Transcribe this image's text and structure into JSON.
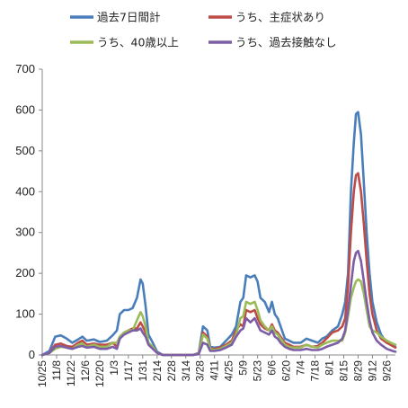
{
  "chart_data": {
    "type": "line",
    "title": "",
    "xlabel": "",
    "ylabel": "",
    "ylim": [
      0,
      700
    ],
    "yticks": [
      0,
      100,
      200,
      300,
      400,
      500,
      600,
      700
    ],
    "grid": false,
    "legend_position": "top",
    "categories": [
      "10/25",
      "11/8",
      "11/22",
      "12/6",
      "12/20",
      "1/3",
      "1/17",
      "1/31",
      "2/14",
      "2/28",
      "3/14",
      "3/28",
      "4/11",
      "4/25",
      "5/9",
      "5/23",
      "6/6",
      "6/20",
      "7/4",
      "7/18",
      "8/1",
      "8/15",
      "8/29",
      "9/12",
      "9/26"
    ],
    "x_tick_labels": [
      "10/25",
      "11/8",
      "11/22",
      "12/6",
      "12/20",
      "1/3",
      "1/17",
      "1/31",
      "2/14",
      "2/28",
      "3/14",
      "3/28",
      "4/11",
      "4/25",
      "5/9",
      "5/23",
      "6/6",
      "6/20",
      "7/4",
      "7/18",
      "8/1",
      "8/15",
      "8/29",
      "9/12",
      "9/26"
    ],
    "series": [
      {
        "name": "過去7日間計",
        "color": "#4a7ebb",
        "points": [
          [
            0,
            0
          ],
          [
            0.5,
            10
          ],
          [
            0.9,
            45
          ],
          [
            1.3,
            48
          ],
          [
            1.7,
            40
          ],
          [
            2.1,
            30
          ],
          [
            2.5,
            38
          ],
          [
            2.8,
            45
          ],
          [
            3.1,
            35
          ],
          [
            3.6,
            38
          ],
          [
            4.0,
            32
          ],
          [
            4.5,
            35
          ],
          [
            4.9,
            48
          ],
          [
            5.2,
            60
          ],
          [
            5.4,
            100
          ],
          [
            5.7,
            110
          ],
          [
            6.0,
            110
          ],
          [
            6.3,
            115
          ],
          [
            6.6,
            140
          ],
          [
            6.85,
            185
          ],
          [
            7.0,
            175
          ],
          [
            7.2,
            120
          ],
          [
            7.4,
            50
          ],
          [
            7.7,
            30
          ],
          [
            8.0,
            8
          ],
          [
            8.4,
            0
          ],
          [
            9.0,
            0
          ],
          [
            9.5,
            0
          ],
          [
            10.0,
            0
          ],
          [
            10.5,
            0
          ],
          [
            10.9,
            5
          ],
          [
            11.2,
            70
          ],
          [
            11.5,
            60
          ],
          [
            11.7,
            20
          ],
          [
            12.0,
            18
          ],
          [
            12.4,
            20
          ],
          [
            12.8,
            35
          ],
          [
            13.2,
            50
          ],
          [
            13.5,
            70
          ],
          [
            13.8,
            130
          ],
          [
            14.0,
            140
          ],
          [
            14.2,
            195
          ],
          [
            14.5,
            190
          ],
          [
            14.8,
            195
          ],
          [
            15.0,
            180
          ],
          [
            15.2,
            140
          ],
          [
            15.5,
            130
          ],
          [
            15.8,
            105
          ],
          [
            16.0,
            130
          ],
          [
            16.2,
            100
          ],
          [
            16.4,
            90
          ],
          [
            16.6,
            70
          ],
          [
            16.9,
            40
          ],
          [
            17.2,
            35
          ],
          [
            17.5,
            30
          ],
          [
            18.0,
            30
          ],
          [
            18.4,
            40
          ],
          [
            18.8,
            35
          ],
          [
            19.2,
            30
          ],
          [
            19.5,
            40
          ],
          [
            19.8,
            45
          ],
          [
            20.2,
            60
          ],
          [
            20.6,
            70
          ],
          [
            20.9,
            100
          ],
          [
            21.1,
            130
          ],
          [
            21.3,
            200
          ],
          [
            21.5,
            400
          ],
          [
            21.7,
            520
          ],
          [
            21.85,
            590
          ],
          [
            22.0,
            595
          ],
          [
            22.2,
            540
          ],
          [
            22.4,
            420
          ],
          [
            22.6,
            300
          ],
          [
            22.8,
            200
          ],
          [
            23.0,
            130
          ],
          [
            23.3,
            80
          ],
          [
            23.6,
            50
          ],
          [
            24.0,
            30
          ],
          [
            24.4,
            25
          ],
          [
            24.6,
            20
          ]
        ]
      },
      {
        "name": "うち、主症状あり",
        "color": "#be4b48",
        "points": [
          [
            0,
            0
          ],
          [
            0.5,
            5
          ],
          [
            0.9,
            25
          ],
          [
            1.3,
            28
          ],
          [
            1.7,
            22
          ],
          [
            2.1,
            20
          ],
          [
            2.5,
            30
          ],
          [
            2.8,
            35
          ],
          [
            3.1,
            25
          ],
          [
            3.6,
            28
          ],
          [
            4.0,
            25
          ],
          [
            4.5,
            25
          ],
          [
            4.9,
            30
          ],
          [
            5.2,
            20
          ],
          [
            5.4,
            40
          ],
          [
            5.7,
            55
          ],
          [
            6.0,
            60
          ],
          [
            6.3,
            65
          ],
          [
            6.6,
            65
          ],
          [
            6.85,
            80
          ],
          [
            7.0,
            70
          ],
          [
            7.2,
            55
          ],
          [
            7.4,
            30
          ],
          [
            7.7,
            20
          ],
          [
            8.0,
            5
          ],
          [
            8.4,
            0
          ],
          [
            9.0,
            0
          ],
          [
            9.5,
            0
          ],
          [
            10.0,
            0
          ],
          [
            10.5,
            0
          ],
          [
            10.9,
            3
          ],
          [
            11.2,
            55
          ],
          [
            11.5,
            45
          ],
          [
            11.7,
            15
          ],
          [
            12.0,
            15
          ],
          [
            12.4,
            18
          ],
          [
            12.8,
            25
          ],
          [
            13.2,
            35
          ],
          [
            13.5,
            60
          ],
          [
            13.8,
            75
          ],
          [
            14.0,
            70
          ],
          [
            14.2,
            110
          ],
          [
            14.5,
            105
          ],
          [
            14.8,
            110
          ],
          [
            15.0,
            90
          ],
          [
            15.2,
            75
          ],
          [
            15.5,
            65
          ],
          [
            15.8,
            60
          ],
          [
            16.0,
            75
          ],
          [
            16.2,
            60
          ],
          [
            16.4,
            55
          ],
          [
            16.6,
            45
          ],
          [
            16.9,
            30
          ],
          [
            17.2,
            25
          ],
          [
            17.5,
            20
          ],
          [
            18.0,
            20
          ],
          [
            18.4,
            25
          ],
          [
            18.8,
            20
          ],
          [
            19.2,
            22
          ],
          [
            19.5,
            30
          ],
          [
            19.8,
            40
          ],
          [
            20.2,
            55
          ],
          [
            20.6,
            60
          ],
          [
            20.9,
            70
          ],
          [
            21.1,
            90
          ],
          [
            21.3,
            170
          ],
          [
            21.5,
            300
          ],
          [
            21.7,
            400
          ],
          [
            21.85,
            440
          ],
          [
            22.0,
            445
          ],
          [
            22.2,
            400
          ],
          [
            22.4,
            320
          ],
          [
            22.6,
            230
          ],
          [
            22.8,
            150
          ],
          [
            23.0,
            100
          ],
          [
            23.3,
            60
          ],
          [
            23.6,
            40
          ],
          [
            24.0,
            30
          ],
          [
            24.4,
            22
          ],
          [
            24.6,
            18
          ]
        ]
      },
      {
        "name": "うち、40歳以上",
        "color": "#9bbb59",
        "points": [
          [
            0,
            0
          ],
          [
            0.5,
            5
          ],
          [
            0.9,
            15
          ],
          [
            1.3,
            20
          ],
          [
            1.7,
            18
          ],
          [
            2.1,
            15
          ],
          [
            2.5,
            25
          ],
          [
            2.8,
            28
          ],
          [
            3.1,
            20
          ],
          [
            3.6,
            25
          ],
          [
            4.0,
            20
          ],
          [
            4.5,
            20
          ],
          [
            4.9,
            30
          ],
          [
            5.2,
            30
          ],
          [
            5.4,
            45
          ],
          [
            5.7,
            55
          ],
          [
            6.0,
            60
          ],
          [
            6.3,
            60
          ],
          [
            6.6,
            85
          ],
          [
            6.85,
            105
          ],
          [
            7.0,
            95
          ],
          [
            7.2,
            70
          ],
          [
            7.4,
            30
          ],
          [
            7.7,
            20
          ],
          [
            8.0,
            5
          ],
          [
            8.4,
            0
          ],
          [
            9.0,
            0
          ],
          [
            9.5,
            0
          ],
          [
            10.0,
            0
          ],
          [
            10.5,
            0
          ],
          [
            10.9,
            3
          ],
          [
            11.2,
            50
          ],
          [
            11.5,
            40
          ],
          [
            11.7,
            15
          ],
          [
            12.0,
            12
          ],
          [
            12.4,
            15
          ],
          [
            12.8,
            22
          ],
          [
            13.2,
            30
          ],
          [
            13.5,
            50
          ],
          [
            13.8,
            90
          ],
          [
            14.0,
            95
          ],
          [
            14.2,
            130
          ],
          [
            14.5,
            125
          ],
          [
            14.8,
            130
          ],
          [
            15.0,
            110
          ],
          [
            15.2,
            85
          ],
          [
            15.5,
            70
          ],
          [
            15.8,
            60
          ],
          [
            16.0,
            70
          ],
          [
            16.2,
            55
          ],
          [
            16.4,
            50
          ],
          [
            16.6,
            40
          ],
          [
            16.9,
            25
          ],
          [
            17.2,
            20
          ],
          [
            17.5,
            18
          ],
          [
            18.0,
            18
          ],
          [
            18.4,
            25
          ],
          [
            18.8,
            20
          ],
          [
            19.2,
            18
          ],
          [
            19.5,
            25
          ],
          [
            19.8,
            30
          ],
          [
            20.2,
            35
          ],
          [
            20.6,
            35
          ],
          [
            20.9,
            35
          ],
          [
            21.1,
            55
          ],
          [
            21.3,
            95
          ],
          [
            21.5,
            140
          ],
          [
            21.7,
            165
          ],
          [
            21.85,
            180
          ],
          [
            22.0,
            185
          ],
          [
            22.2,
            180
          ],
          [
            22.4,
            150
          ],
          [
            22.6,
            110
          ],
          [
            22.8,
            70
          ],
          [
            23.0,
            60
          ],
          [
            23.3,
            55
          ],
          [
            23.6,
            45
          ],
          [
            24.0,
            35
          ],
          [
            24.4,
            28
          ],
          [
            24.6,
            25
          ]
        ]
      },
      {
        "name": "うち、過去接触なし",
        "color": "#7d5ea6",
        "points": [
          [
            0,
            0
          ],
          [
            0.5,
            5
          ],
          [
            0.9,
            20
          ],
          [
            1.3,
            22
          ],
          [
            1.7,
            18
          ],
          [
            2.1,
            15
          ],
          [
            2.5,
            20
          ],
          [
            2.8,
            22
          ],
          [
            3.1,
            18
          ],
          [
            3.6,
            20
          ],
          [
            4.0,
            15
          ],
          [
            4.5,
            15
          ],
          [
            4.9,
            20
          ],
          [
            5.2,
            15
          ],
          [
            5.4,
            40
          ],
          [
            5.7,
            50
          ],
          [
            6.0,
            55
          ],
          [
            6.3,
            60
          ],
          [
            6.6,
            60
          ],
          [
            6.85,
            65
          ],
          [
            7.0,
            55
          ],
          [
            7.2,
            45
          ],
          [
            7.4,
            25
          ],
          [
            7.7,
            15
          ],
          [
            8.0,
            5
          ],
          [
            8.4,
            0
          ],
          [
            9.0,
            0
          ],
          [
            9.5,
            0
          ],
          [
            10.0,
            0
          ],
          [
            10.5,
            0
          ],
          [
            10.9,
            2
          ],
          [
            11.2,
            30
          ],
          [
            11.5,
            25
          ],
          [
            11.7,
            10
          ],
          [
            12.0,
            10
          ],
          [
            12.4,
            12
          ],
          [
            12.8,
            18
          ],
          [
            13.2,
            25
          ],
          [
            13.5,
            45
          ],
          [
            13.8,
            60
          ],
          [
            14.0,
            65
          ],
          [
            14.2,
            90
          ],
          [
            14.5,
            80
          ],
          [
            14.8,
            90
          ],
          [
            15.0,
            75
          ],
          [
            15.2,
            60
          ],
          [
            15.5,
            55
          ],
          [
            15.8,
            50
          ],
          [
            16.0,
            60
          ],
          [
            16.2,
            45
          ],
          [
            16.4,
            40
          ],
          [
            16.6,
            30
          ],
          [
            16.9,
            20
          ],
          [
            17.2,
            15
          ],
          [
            17.5,
            12
          ],
          [
            18.0,
            12
          ],
          [
            18.4,
            15
          ],
          [
            18.8,
            12
          ],
          [
            19.2,
            12
          ],
          [
            19.5,
            15
          ],
          [
            19.8,
            20
          ],
          [
            20.2,
            25
          ],
          [
            20.6,
            30
          ],
          [
            20.9,
            40
          ],
          [
            21.1,
            60
          ],
          [
            21.3,
            110
          ],
          [
            21.5,
            170
          ],
          [
            21.7,
            230
          ],
          [
            21.85,
            250
          ],
          [
            22.0,
            255
          ],
          [
            22.2,
            230
          ],
          [
            22.4,
            180
          ],
          [
            22.6,
            130
          ],
          [
            22.8,
            85
          ],
          [
            23.0,
            55
          ],
          [
            23.3,
            35
          ],
          [
            23.6,
            25
          ],
          [
            24.0,
            15
          ],
          [
            24.4,
            10
          ],
          [
            24.6,
            8
          ]
        ]
      }
    ]
  }
}
